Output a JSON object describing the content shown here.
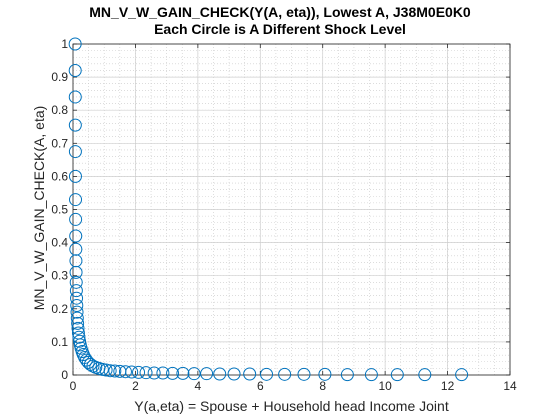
{
  "chart_data": {
    "type": "scatter",
    "title": "MN_V_W_GAIN_CHECK(Y(A, eta)), Lowest A, J38M0E0K0",
    "subtitle": "Each Circle is A Different Shock Level",
    "xlabel": "Y(a,eta) = Spouse + Household head Income Joint",
    "ylabel": "MN_V_W_GAIN_CHECK(A, eta)",
    "xlim": [
      0,
      14
    ],
    "ylim": [
      0,
      1
    ],
    "xticks": [
      0,
      2,
      4,
      6,
      8,
      10,
      12,
      14
    ],
    "yticks": [
      0,
      0.1,
      0.2,
      0.3,
      0.4,
      0.5,
      0.6,
      0.7,
      0.8,
      0.9,
      1
    ],
    "grid": true,
    "minor_grid": true,
    "legend": "none",
    "marker": "open-circle",
    "marker_color": "#0072BD",
    "series": [
      {
        "x": [
          0.069,
          0.071,
          0.073,
          0.075,
          0.077,
          0.079,
          0.081,
          0.084,
          0.087,
          0.09,
          0.094,
          0.098,
          0.103,
          0.108,
          0.114,
          0.121,
          0.129,
          0.138,
          0.148,
          0.16,
          0.174,
          0.19,
          0.21,
          0.233,
          0.26,
          0.293,
          0.33,
          0.375,
          0.43,
          0.49,
          0.56,
          0.64,
          0.73,
          0.83,
          0.94,
          1.06,
          1.19,
          1.34,
          1.5,
          1.68,
          1.88,
          2.1,
          2.34,
          2.6,
          2.88,
          3.19,
          3.52,
          3.88,
          4.28,
          4.7,
          5.16,
          5.66,
          6.2,
          6.78,
          7.4,
          8.07,
          8.79,
          9.56,
          10.39,
          11.27,
          12.45
        ],
        "y": [
          1.0,
          0.92,
          0.84,
          0.755,
          0.675,
          0.6,
          0.53,
          0.47,
          0.42,
          0.38,
          0.345,
          0.31,
          0.28,
          0.255,
          0.232,
          0.21,
          0.19,
          0.172,
          0.156,
          0.141,
          0.127,
          0.114,
          0.102,
          0.091,
          0.081,
          0.071,
          0.062,
          0.053,
          0.045,
          0.038,
          0.032,
          0.027,
          0.023,
          0.02,
          0.017,
          0.015,
          0.013,
          0.012,
          0.011,
          0.01,
          0.009,
          0.008,
          0.007,
          0.006,
          0.006,
          0.005,
          0.005,
          0.004,
          0.004,
          0.003,
          0.003,
          0.003,
          0.002,
          0.002,
          0.002,
          0.002,
          0.001,
          0.001,
          0.001,
          0.001,
          0.001
        ]
      }
    ]
  }
}
